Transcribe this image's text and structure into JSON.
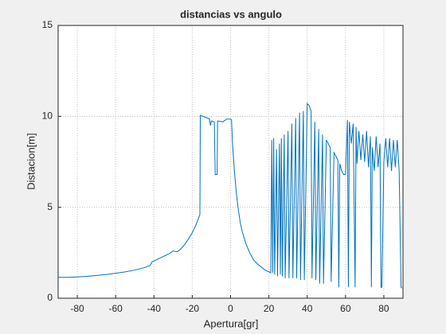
{
  "chart_data": {
    "type": "line",
    "title": "distancias vs angulo",
    "x_label": "Apertura[gr]",
    "y_label": "Distacion[m]",
    "xlim": [
      -90,
      90
    ],
    "xticks": [
      -80,
      -60,
      -40,
      -20,
      0,
      20,
      40,
      60,
      80
    ],
    "ylim": [
      0,
      15
    ],
    "yticks": [
      0,
      5,
      10,
      15
    ],
    "grid": true,
    "series": [
      {
        "color": "#0072bd",
        "x": [
          -90,
          -85,
          -80,
          -75,
          -70,
          -65,
          -60,
          -55,
          -50,
          -45,
          -42,
          -41,
          -38,
          -35,
          -32,
          -30,
          -28,
          -26,
          -24,
          -22,
          -20,
          -18,
          -16,
          -15.8,
          -13,
          -11,
          -10.5,
          -10,
          -8.5,
          -8,
          -7,
          -6.8,
          -4,
          -2,
          0,
          0.5,
          1,
          2,
          3,
          4,
          5,
          6,
          8,
          10,
          12,
          15,
          18,
          21,
          21.5,
          22,
          22.5,
          23,
          24,
          24.5,
          25.5,
          26,
          26.5,
          27,
          28,
          28.5,
          30,
          30.5,
          32,
          32.5,
          34,
          34.5,
          36,
          36.5,
          38,
          38.5,
          40,
          41,
          42,
          42.5,
          44,
          44.5,
          46,
          46.5,
          48,
          48.5,
          50,
          51,
          52,
          52.5,
          54,
          55,
          56,
          56.5,
          57,
          58,
          59,
          60,
          61,
          61.5,
          62,
          63,
          64,
          65,
          65.5,
          66,
          67,
          68,
          69,
          70,
          71,
          72,
          73,
          73.5,
          74,
          75,
          76,
          77,
          78,
          78.5,
          79,
          80,
          81,
          82,
          83,
          84,
          85,
          86,
          87,
          88,
          89,
          89.5
        ],
        "values": [
          1.15,
          1.15,
          1.17,
          1.2,
          1.25,
          1.3,
          1.37,
          1.45,
          1.55,
          1.68,
          1.8,
          2.0,
          2.15,
          2.3,
          2.45,
          2.6,
          2.55,
          2.7,
          2.95,
          3.25,
          3.6,
          4.05,
          4.6,
          10.05,
          9.95,
          9.85,
          9.5,
          9.75,
          9.7,
          6.8,
          6.8,
          9.75,
          9.7,
          9.85,
          9.85,
          9.8,
          8.5,
          7,
          5.8,
          4.9,
          4.2,
          3.7,
          3.0,
          2.5,
          2.1,
          1.8,
          1.55,
          1.4,
          8.7,
          1.4,
          8.8,
          1.3,
          8.2,
          1.2,
          8.5,
          1.3,
          8.8,
          1.2,
          9.0,
          1.1,
          9.2,
          1.1,
          9.6,
          1.1,
          9.9,
          1.1,
          10.2,
          1.0,
          10.3,
          1.0,
          10.7,
          10.6,
          10.3,
          1.1,
          9.7,
          1.0,
          9.3,
          0.8,
          9.0,
          0.8,
          8.7,
          8.5,
          8.3,
          0.9,
          8.0,
          7.8,
          7.6,
          0.6,
          7.4,
          7.0,
          6.8,
          6.8,
          9.8,
          0.6,
          9.7,
          8.5,
          9.6,
          0.6,
          9.4,
          7.4,
          9.2,
          7.6,
          9.0,
          7.5,
          9.2,
          7.2,
          8.9,
          0.6,
          8.3,
          7.0,
          8.9,
          7.2,
          8.5,
          0.6,
          0.6,
          7.5,
          8.8,
          7.2,
          8.8,
          7.0,
          8.7,
          7.2,
          8.7,
          7.0,
          0.6,
          0.55
        ]
      }
    ]
  }
}
